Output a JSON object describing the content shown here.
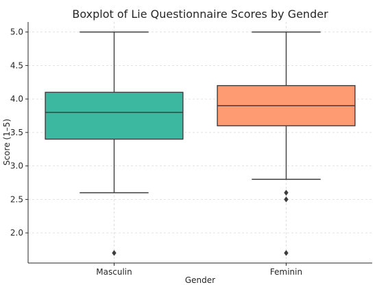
{
  "chart_data": {
    "type": "box",
    "title": "Boxplot of Lie Questionnaire Scores by Gender",
    "xlabel": "Gender",
    "ylabel": "Score (1–5)",
    "ylim": [
      1.55,
      5.15
    ],
    "yticks": [
      "2.0",
      "2.5",
      "3.0",
      "3.5",
      "4.0",
      "4.5",
      "5.0"
    ],
    "grid": true,
    "categories": [
      "Masculin",
      "Feminin"
    ],
    "boxes": [
      {
        "category": "Masculin",
        "whisker_low": 2.6,
        "q1": 3.4,
        "median": 3.8,
        "q3": 4.1,
        "whisker_high": 5.0,
        "outliers": [
          1.7
        ],
        "color": "#3db8a0"
      },
      {
        "category": "Feminin",
        "whisker_low": 2.8,
        "q1": 3.6,
        "median": 3.9,
        "q3": 4.2,
        "whisker_high": 5.0,
        "outliers": [
          2.6,
          2.5,
          1.7
        ],
        "color": "#ff9b72"
      }
    ]
  }
}
